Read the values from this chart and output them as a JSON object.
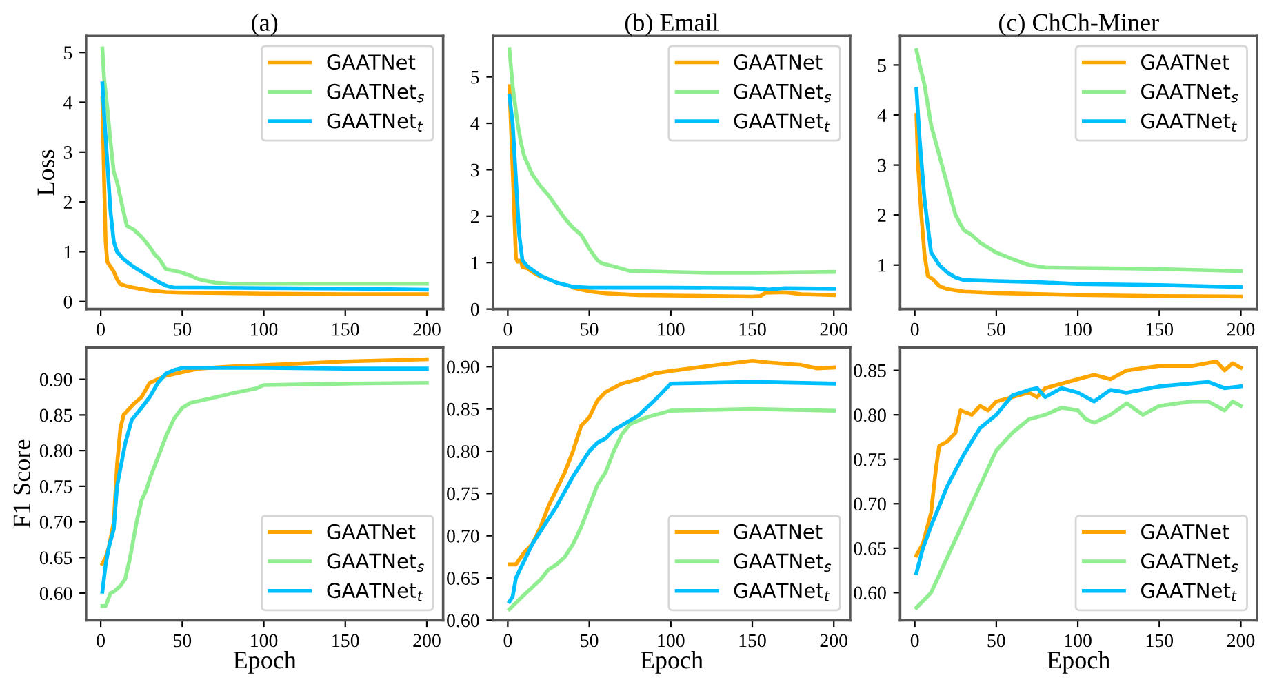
{
  "chart_data": [
    {
      "type": "line",
      "title": "(a)",
      "ylabel": "Loss",
      "xlim": [
        -9,
        210
      ],
      "xticks": [
        0,
        50,
        100,
        150,
        200
      ],
      "ylim": [
        -0.15,
        5.33
      ],
      "yticks": [
        0,
        1,
        2,
        3,
        4,
        5
      ],
      "legend": "top right",
      "grid": false,
      "series": [
        {
          "name": "GAATNet",
          "color": "#ffa500",
          "x": [
            1,
            2,
            3,
            4,
            6,
            8,
            10,
            12,
            15,
            20,
            30,
            40,
            50,
            75,
            100,
            150,
            200
          ],
          "values": [
            4.08,
            2.5,
            1.2,
            0.8,
            0.7,
            0.6,
            0.45,
            0.35,
            0.32,
            0.28,
            0.22,
            0.19,
            0.18,
            0.17,
            0.16,
            0.15,
            0.15
          ]
        },
        {
          "name": "GAATNet$_{s}$",
          "color": "#90ee90",
          "x": [
            1,
            2,
            4,
            6,
            8,
            10,
            12,
            14,
            16,
            20,
            25,
            30,
            33,
            36,
            40,
            45,
            50,
            55,
            60,
            70,
            80,
            100,
            150,
            200
          ],
          "values": [
            5.08,
            4.5,
            3.9,
            3.2,
            2.6,
            2.4,
            2.1,
            1.8,
            1.52,
            1.45,
            1.3,
            1.1,
            0.95,
            0.85,
            0.65,
            0.62,
            0.58,
            0.52,
            0.45,
            0.38,
            0.36,
            0.36,
            0.36,
            0.36
          ]
        },
        {
          "name": "GAATNet$_{t}$",
          "color": "#00bfff",
          "x": [
            1,
            2,
            4,
            6,
            8,
            10,
            14,
            20,
            30,
            35,
            40,
            45,
            60,
            100,
            150,
            200
          ],
          "values": [
            4.38,
            3.8,
            2.8,
            1.8,
            1.2,
            1.0,
            0.85,
            0.7,
            0.5,
            0.4,
            0.32,
            0.28,
            0.28,
            0.27,
            0.26,
            0.24
          ]
        }
      ]
    },
    {
      "type": "line",
      "title": "(b) Email",
      "xlim": [
        -9,
        210
      ],
      "xticks": [
        0,
        50,
        100,
        150,
        200
      ],
      "ylim": [
        0,
        5.88
      ],
      "yticks": [
        0,
        1,
        2,
        3,
        4,
        5
      ],
      "legend": "top right",
      "grid": false,
      "series": [
        {
          "name": "GAATNet",
          "color": "#ffa500",
          "x": [
            1,
            3,
            5,
            6,
            8,
            9,
            12,
            15,
            20,
            30,
            40,
            50,
            60,
            80,
            100,
            150,
            155,
            158,
            170,
            180,
            200
          ],
          "values": [
            4.8,
            3.0,
            1.1,
            1.02,
            1.05,
            0.9,
            0.88,
            0.8,
            0.7,
            null,
            0.46,
            0.38,
            0.34,
            0.3,
            0.29,
            0.27,
            0.28,
            0.35,
            0.36,
            0.32,
            0.3
          ]
        },
        {
          "name": "GAATNet$_{s}$",
          "color": "#90ee90",
          "x": [
            1,
            3,
            6,
            8,
            10,
            15,
            20,
            25,
            30,
            35,
            40,
            45,
            50,
            55,
            58,
            65,
            75,
            100,
            125,
            150,
            200
          ],
          "values": [
            5.6,
            4.8,
            4.0,
            3.6,
            3.3,
            2.9,
            2.65,
            2.45,
            2.2,
            1.95,
            1.75,
            1.6,
            1.3,
            1.05,
            0.98,
            0.92,
            0.82,
            0.8,
            0.78,
            0.78,
            0.8
          ]
        },
        {
          "name": "GAATNet$_{t}$",
          "color": "#00bfff",
          "x": [
            1,
            3,
            5,
            7,
            9,
            12,
            20,
            30,
            40,
            50,
            100,
            150,
            160,
            170,
            200
          ],
          "values": [
            4.6,
            4.0,
            2.8,
            1.6,
            1.05,
            0.92,
            0.72,
            0.57,
            0.48,
            0.46,
            0.46,
            0.45,
            0.42,
            0.45,
            0.44
          ]
        }
      ]
    },
    {
      "type": "line",
      "title": "(c) ChCh-Miner",
      "xlim": [
        -9,
        210
      ],
      "xticks": [
        0,
        50,
        100,
        150,
        200
      ],
      "ylim": [
        0.12,
        5.58
      ],
      "yticks": [
        1,
        2,
        3,
        4,
        5
      ],
      "legend": "top right",
      "grid": false,
      "series": [
        {
          "name": "GAATNet",
          "color": "#ffa500",
          "x": [
            1,
            2,
            4,
            6,
            8,
            11,
            15,
            20,
            30,
            50,
            75,
            100,
            150,
            200
          ],
          "values": [
            4.0,
            3.0,
            2.0,
            1.2,
            0.78,
            0.72,
            0.58,
            0.52,
            0.47,
            0.44,
            0.42,
            0.4,
            0.38,
            0.37
          ]
        },
        {
          "name": "GAATNet$_{s}$",
          "color": "#90ee90",
          "x": [
            1,
            3,
            6,
            10,
            15,
            20,
            25,
            30,
            35,
            40,
            50,
            60,
            70,
            80,
            100,
            130,
            150,
            200
          ],
          "values": [
            5.3,
            5.0,
            4.6,
            3.8,
            3.2,
            2.6,
            2.0,
            1.7,
            1.6,
            1.45,
            1.25,
            1.12,
            1.0,
            0.95,
            0.94,
            0.93,
            0.92,
            0.88
          ]
        },
        {
          "name": "GAATNet$_{t}$",
          "color": "#00bfff",
          "x": [
            1,
            3,
            6,
            10,
            12,
            15,
            20,
            25,
            30,
            50,
            75,
            100,
            150,
            200
          ],
          "values": [
            4.52,
            3.5,
            2.3,
            1.25,
            1.15,
            1.0,
            0.85,
            0.75,
            0.7,
            0.68,
            0.66,
            0.62,
            0.6,
            0.56
          ]
        }
      ]
    },
    {
      "type": "line",
      "xlabel": "Epoch",
      "ylabel": "F1 Score",
      "xlim": [
        -9,
        210
      ],
      "xticks": [
        0,
        50,
        100,
        150,
        200
      ],
      "ylim": [
        0.562,
        0.945
      ],
      "yticks": [
        {
          "value": 0.6,
          "label": "0.60"
        },
        {
          "value": 0.65,
          "label": "0.65"
        },
        {
          "value": 0.7,
          "label": "0.70"
        },
        {
          "value": 0.75,
          "label": "0.75"
        },
        {
          "value": 0.8,
          "label": "0.80"
        },
        {
          "value": 0.85,
          "label": "0.85"
        },
        {
          "value": 0.9,
          "label": "0.90"
        }
      ],
      "legend": "bottom right",
      "grid": false,
      "series": [
        {
          "name": "GAATNet",
          "color": "#ffa500",
          "x": [
            1,
            3,
            5,
            8,
            10,
            12,
            14,
            18,
            20,
            25,
            30,
            35,
            40,
            50,
            60,
            80,
            100,
            150,
            200
          ],
          "values": [
            0.641,
            0.65,
            0.665,
            0.7,
            0.78,
            0.83,
            0.85,
            0.86,
            0.865,
            0.875,
            0.895,
            0.9,
            0.905,
            0.91,
            0.915,
            0.918,
            0.92,
            0.925,
            0.928
          ]
        },
        {
          "name": "GAATNet$_{s}$",
          "color": "#90ee90",
          "x": [
            1,
            3,
            6,
            8,
            12,
            15,
            18,
            22,
            25,
            28,
            30,
            35,
            40,
            45,
            50,
            55,
            65,
            80,
            95,
            100,
            150,
            200
          ],
          "values": [
            0.582,
            0.582,
            0.6,
            0.602,
            0.61,
            0.62,
            0.65,
            0.7,
            0.73,
            0.745,
            0.76,
            0.79,
            0.82,
            0.845,
            0.86,
            0.867,
            0.872,
            0.88,
            0.887,
            0.892,
            0.894,
            0.895
          ]
        },
        {
          "name": "GAATNet$_{t}$",
          "color": "#00bfff",
          "x": [
            1,
            3,
            5,
            8,
            10,
            15,
            19,
            25,
            30,
            35,
            40,
            45,
            50,
            100,
            150,
            200
          ],
          "values": [
            0.602,
            0.64,
            0.665,
            0.69,
            0.75,
            0.81,
            0.843,
            0.86,
            0.875,
            0.895,
            0.908,
            0.913,
            0.916,
            0.916,
            0.915,
            0.915
          ]
        }
      ]
    },
    {
      "type": "line",
      "xlabel": "Epoch",
      "xlim": [
        -9,
        210
      ],
      "xticks": [
        0,
        50,
        100,
        150,
        200
      ],
      "ylim": [
        0.6,
        0.923
      ],
      "yticks": [
        {
          "value": 0.6,
          "label": "0.60"
        },
        {
          "value": 0.65,
          "label": "0.65"
        },
        {
          "value": 0.7,
          "label": "0.70"
        },
        {
          "value": 0.75,
          "label": "0.75"
        },
        {
          "value": 0.8,
          "label": "0.80"
        },
        {
          "value": 0.85,
          "label": "0.85"
        },
        {
          "value": 0.9,
          "label": "0.90"
        }
      ],
      "legend": "bottom right",
      "grid": false,
      "series": [
        {
          "name": "GAATNet",
          "color": "#ffa500",
          "x": [
            1,
            5,
            10,
            15,
            20,
            25,
            30,
            35,
            40,
            45,
            50,
            55,
            60,
            70,
            80,
            90,
            100,
            120,
            150,
            160,
            180,
            190,
            200
          ],
          "values": [
            0.666,
            0.666,
            0.68,
            0.69,
            0.71,
            0.735,
            0.755,
            0.775,
            0.8,
            0.83,
            0.84,
            0.86,
            0.87,
            0.88,
            0.885,
            0.892,
            0.895,
            0.9,
            0.907,
            0.905,
            0.902,
            0.898,
            0.899
          ]
        },
        {
          "name": "GAATNet$_{s}$",
          "color": "#90ee90",
          "x": [
            1,
            10,
            20,
            25,
            30,
            35,
            40,
            45,
            50,
            55,
            60,
            65,
            70,
            75,
            85,
            100,
            150,
            200
          ],
          "values": [
            0.613,
            0.63,
            0.648,
            0.66,
            0.666,
            0.675,
            0.69,
            0.71,
            0.735,
            0.76,
            0.775,
            0.8,
            0.82,
            0.832,
            0.84,
            0.848,
            0.85,
            0.848
          ]
        },
        {
          "name": "GAATNet$_{t}$",
          "color": "#00bfff",
          "x": [
            1,
            3,
            5,
            10,
            15,
            20,
            30,
            40,
            50,
            55,
            60,
            65,
            80,
            90,
            100,
            150,
            200
          ],
          "values": [
            0.622,
            0.628,
            0.65,
            0.67,
            0.69,
            0.705,
            0.735,
            0.77,
            0.8,
            0.81,
            0.815,
            0.825,
            0.842,
            0.86,
            0.88,
            0.882,
            0.88
          ]
        }
      ]
    },
    {
      "type": "line",
      "xlabel": "Epoch",
      "xlim": [
        -9,
        210
      ],
      "xticks": [
        0,
        50,
        100,
        150,
        200
      ],
      "ylim": [
        0.569,
        0.876
      ],
      "yticks": [
        {
          "value": 0.6,
          "label": "0.60"
        },
        {
          "value": 0.65,
          "label": "0.65"
        },
        {
          "value": 0.7,
          "label": "0.70"
        },
        {
          "value": 0.75,
          "label": "0.75"
        },
        {
          "value": 0.8,
          "label": "0.80"
        },
        {
          "value": 0.85,
          "label": "0.85"
        }
      ],
      "legend": "bottom right",
      "grid": false,
      "series": [
        {
          "name": "GAATNet",
          "color": "#ffa500",
          "x": [
            1,
            5,
            10,
            13,
            15,
            20,
            25,
            28,
            35,
            40,
            45,
            50,
            60,
            70,
            75,
            80,
            90,
            100,
            110,
            120,
            130,
            150,
            170,
            185,
            190,
            195,
            200
          ],
          "values": [
            0.642,
            0.655,
            0.69,
            0.74,
            0.765,
            0.77,
            0.78,
            0.805,
            0.8,
            0.81,
            0.805,
            0.815,
            0.82,
            0.825,
            0.82,
            0.83,
            0.835,
            0.84,
            0.845,
            0.84,
            0.85,
            0.855,
            0.855,
            0.86,
            0.85,
            0.858,
            0.853
          ]
        },
        {
          "name": "GAATNet$_{s}$",
          "color": "#90ee90",
          "x": [
            1,
            10,
            20,
            30,
            40,
            50,
            60,
            70,
            80,
            90,
            100,
            105,
            110,
            120,
            130,
            140,
            150,
            170,
            180,
            190,
            195,
            200
          ],
          "values": [
            0.583,
            0.6,
            0.64,
            0.68,
            0.72,
            0.76,
            0.78,
            0.795,
            0.8,
            0.808,
            0.805,
            0.795,
            0.791,
            0.8,
            0.813,
            0.8,
            0.81,
            0.815,
            0.815,
            0.805,
            0.815,
            0.81
          ]
        },
        {
          "name": "GAATNet$_{t}$",
          "color": "#00bfff",
          "x": [
            1,
            5,
            10,
            20,
            30,
            40,
            50,
            60,
            70,
            75,
            80,
            90,
            100,
            110,
            120,
            130,
            150,
            180,
            190,
            200
          ],
          "values": [
            0.622,
            0.65,
            0.675,
            0.72,
            0.755,
            0.785,
            0.8,
            0.822,
            0.828,
            0.83,
            0.82,
            0.83,
            0.825,
            0.815,
            0.828,
            0.825,
            0.832,
            0.837,
            0.83,
            0.832
          ]
        }
      ]
    }
  ]
}
